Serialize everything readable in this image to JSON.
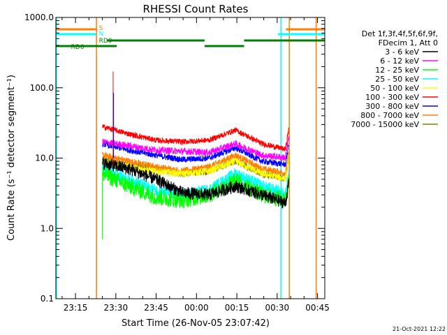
{
  "chart_data": {
    "type": "line",
    "title": "RHESSI Count Rates",
    "xlabel": "Start Time (26-Nov-05 23:07:42)",
    "ylabel": "Count Rate (s⁻¹ detector segment⁻¹)",
    "yscale": "log",
    "ylim": [
      0.1,
      1000.0
    ],
    "xlim_minutes": [
      0.0,
      100.0
    ],
    "x_tick_minutes": [
      7.3,
      22.3,
      37.3,
      52.3,
      67.3,
      82.3,
      97.3
    ],
    "x_tick_labels": [
      "23:15",
      "23:30",
      "23:45",
      "00:00",
      "00:15",
      "00:30",
      "00:45"
    ],
    "y_ticks": [
      0.1,
      1.0,
      10.0,
      100.0,
      1000.0
    ],
    "y_tick_labels": [
      "0.1",
      "1.0",
      "10.0",
      "100.0",
      "1000.0"
    ],
    "legend_header": [
      "Det 1f,3f,4f,5f,6f,9f,",
      "FDecim 1, Att 0"
    ],
    "legend_position": "right",
    "data_start_minute": 17.3,
    "data_end_minute": 86.6,
    "series": [
      {
        "name": "3 - 6 keV",
        "color": "#000000",
        "approx_values": [
          8.5,
          7.0,
          5.0,
          3.2,
          3.0,
          4.0,
          3.0,
          2.2
        ]
      },
      {
        "name": "6 - 12 keV",
        "color": "#ff00ff",
        "approx_values": [
          17.0,
          15.0,
          13.0,
          12.5,
          12.0,
          16.0,
          11.0,
          10.0
        ]
      },
      {
        "name": "12 - 25 keV",
        "color": "#00ff00",
        "approx_values": [
          6.0,
          4.0,
          2.8,
          2.5,
          3.0,
          4.8,
          3.0,
          2.5
        ]
      },
      {
        "name": "25 - 50 keV",
        "color": "#00ffff",
        "approx_values": [
          7.0,
          5.0,
          3.5,
          3.0,
          3.5,
          6.0,
          4.0,
          3.0
        ]
      },
      {
        "name": "50 - 100 keV",
        "color": "#ffff00",
        "approx_values": [
          9.0,
          7.5,
          6.5,
          6.0,
          6.5,
          9.0,
          6.0,
          5.0
        ]
      },
      {
        "name": "100 - 300 keV",
        "color": "#ff0000",
        "approx_values": [
          28.0,
          22.0,
          18.0,
          17.0,
          18.0,
          25.0,
          16.0,
          13.0
        ]
      },
      {
        "name": "300 - 800 keV",
        "color": "#0000ff",
        "approx_values": [
          16.0,
          13.0,
          11.0,
          9.5,
          10.0,
          14.0,
          9.0,
          8.0
        ]
      },
      {
        "name": "800 - 7000 keV",
        "color": "#ff8000",
        "approx_values": [
          11.0,
          9.0,
          7.5,
          6.5,
          7.5,
          11.0,
          7.0,
          6.0
        ]
      },
      {
        "name": "7000 - 15000 keV",
        "color": "#808000",
        "approx_values": [
          9.5,
          8.0,
          7.0,
          6.0,
          6.5,
          9.0,
          6.0,
          5.0
        ]
      }
    ],
    "flags": [
      {
        "label": "S",
        "color": "#ff8000",
        "segments_minutes": [
          [
            0.0,
            15.0
          ],
          [
            85.6,
            100.0
          ]
        ]
      },
      {
        "label": "N",
        "color": "#00ffff",
        "segments_minutes": [
          [
            0.0,
            15.0
          ],
          [
            82.6,
            100.0
          ]
        ]
      },
      {
        "label": "RD0",
        "color": "#008000",
        "segments_minutes": [
          [
            18.9,
            55.3
          ],
          [
            70.0,
            100.0
          ]
        ]
      },
      {
        "label": "RD6",
        "color": "#008000",
        "segments_minutes": [
          [
            0.0,
            22.6
          ],
          [
            55.3,
            70.0
          ]
        ]
      }
    ],
    "markers": [
      {
        "color": "#00ffff",
        "minute": 0.2
      },
      {
        "color": "#ff8000",
        "minute": 15.1
      },
      {
        "color": "#00ffff",
        "minute": 83.7
      },
      {
        "color": "#ff8000",
        "minute": 86.8
      },
      {
        "color": "#ff8000",
        "minute": 96.8
      }
    ],
    "spike": {
      "minute": 21.3,
      "value": 170.0
    }
  },
  "footer_date": "21-Oct-2021 12:22"
}
